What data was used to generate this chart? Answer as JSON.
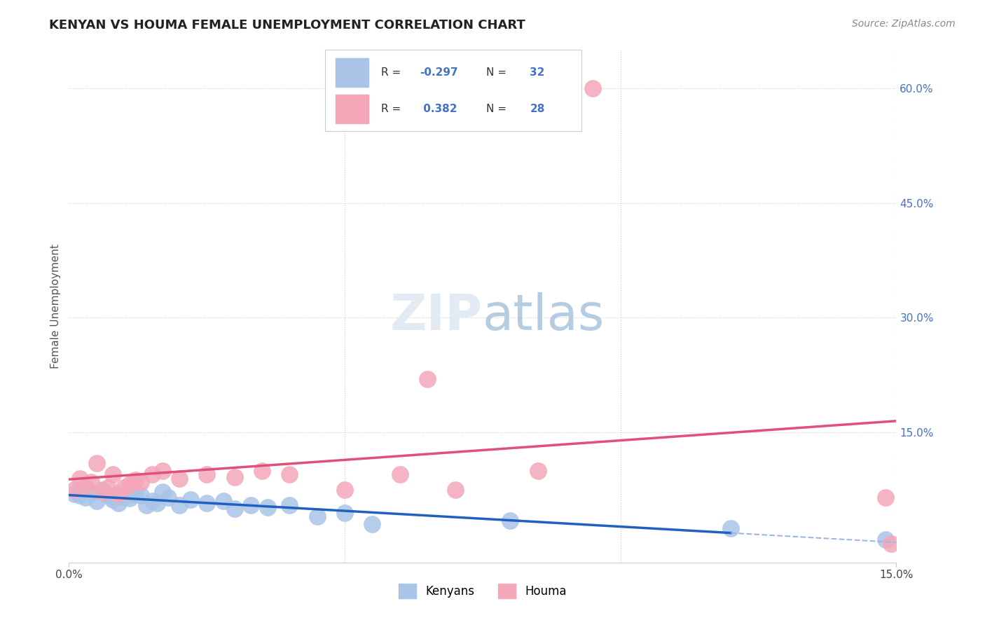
{
  "title": "KENYAN VS HOUMA FEMALE UNEMPLOYMENT CORRELATION CHART",
  "source": "Source: ZipAtlas.com",
  "ylabel": "Female Unemployment",
  "right_yticks": [
    "60.0%",
    "45.0%",
    "30.0%",
    "15.0%"
  ],
  "right_ytick_vals": [
    0.6,
    0.45,
    0.3,
    0.15
  ],
  "legend_kenyans_label": "Kenyans",
  "legend_houma_label": "Houma",
  "kenyan_color": "#aac4e8",
  "houma_color": "#f4a7b9",
  "kenyan_line_color": "#2060c0",
  "houma_line_color": "#e0507a",
  "kenyan_dashed_color": "#a0b8d8",
  "background_color": "#ffffff",
  "kenyan_x": [
    0.001,
    0.002,
    0.003,
    0.004,
    0.005,
    0.006,
    0.007,
    0.008,
    0.009,
    0.01,
    0.011,
    0.012,
    0.013,
    0.014,
    0.015,
    0.016,
    0.017,
    0.018,
    0.02,
    0.022,
    0.025,
    0.028,
    0.03,
    0.033,
    0.036,
    0.04,
    0.045,
    0.05,
    0.055,
    0.08,
    0.12,
    0.148
  ],
  "kenyan_y": [
    0.07,
    0.068,
    0.065,
    0.072,
    0.06,
    0.075,
    0.068,
    0.062,
    0.058,
    0.066,
    0.064,
    0.07,
    0.068,
    0.055,
    0.06,
    0.058,
    0.072,
    0.065,
    0.055,
    0.062,
    0.058,
    0.06,
    0.05,
    0.055,
    0.052,
    0.055,
    0.04,
    0.045,
    0.03,
    0.035,
    0.025,
    0.01
  ],
  "houma_x": [
    0.001,
    0.002,
    0.003,
    0.004,
    0.005,
    0.006,
    0.007,
    0.008,
    0.009,
    0.01,
    0.011,
    0.012,
    0.013,
    0.015,
    0.017,
    0.02,
    0.025,
    0.03,
    0.035,
    0.04,
    0.05,
    0.06,
    0.065,
    0.07,
    0.085,
    0.095,
    0.148,
    0.149
  ],
  "houma_y": [
    0.075,
    0.09,
    0.08,
    0.085,
    0.11,
    0.072,
    0.078,
    0.095,
    0.07,
    0.078,
    0.082,
    0.088,
    0.085,
    0.095,
    0.1,
    0.09,
    0.095,
    0.092,
    0.1,
    0.095,
    0.075,
    0.095,
    0.22,
    0.075,
    0.1,
    0.6,
    0.065,
    0.005
  ],
  "xlim": [
    0.0,
    0.15
  ],
  "ylim": [
    -0.02,
    0.65
  ]
}
